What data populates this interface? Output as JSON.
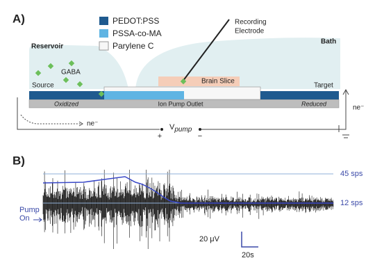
{
  "panel_a": {
    "label": "A)",
    "legend": [
      "PEDOT:PSS",
      "PSSA-co-MA",
      "Parylene C"
    ],
    "electrode": [
      "Recording",
      "Electrode"
    ],
    "reservoir": "Reservoir",
    "bath": "Bath",
    "gaba": "GABA",
    "brain_slice": "Brain Slice",
    "source": "Source",
    "target": "Target",
    "oxidized": "Oxidized",
    "outlet": "Ion Pump Outlet",
    "reduced": "Reduced",
    "electron_left": "ne⁻",
    "electron_right": "ne⁻",
    "voltage": {
      "main": "V",
      "sub": "pump"
    },
    "plus": "+",
    "minus": "−"
  },
  "panel_b": {
    "label": "B)",
    "rate_high": "45 sps",
    "rate_low": "12 sps",
    "pump_on": [
      "Pump",
      "On"
    ],
    "scale_v": "20 μV",
    "scale_t": "20s"
  }
}
